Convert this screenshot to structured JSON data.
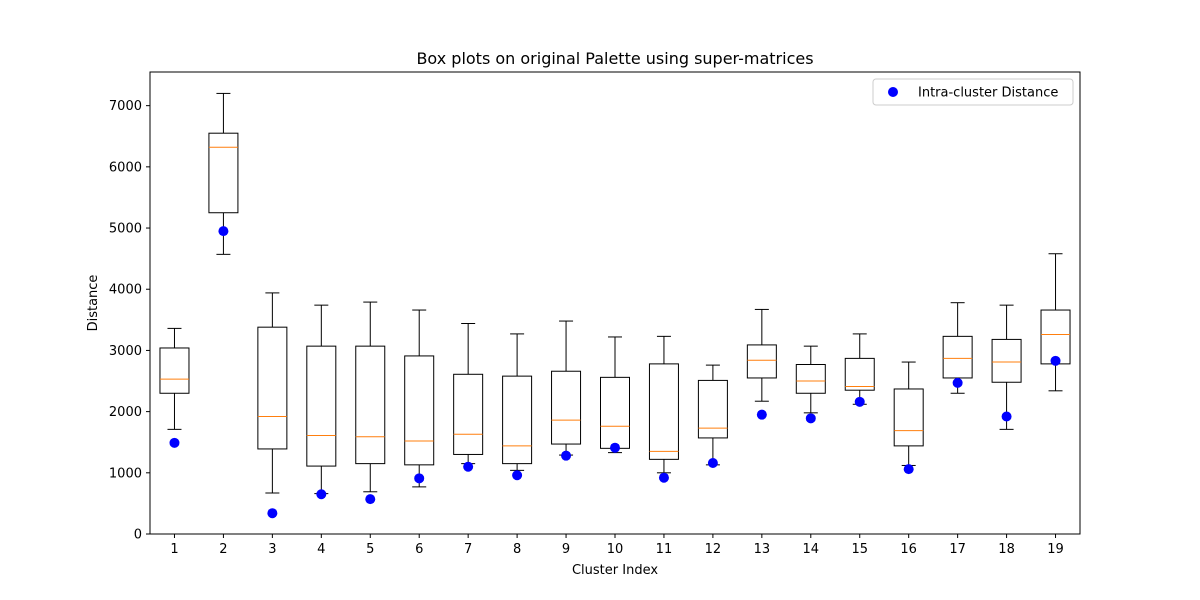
{
  "chart_data": {
    "type": "box",
    "title": "Box plots on original Palette using super-matrices",
    "xlabel": "Cluster Index",
    "ylabel": "Distance",
    "ylim": [
      0,
      7550
    ],
    "xlim": [
      0.5,
      19.5
    ],
    "yticks": [
      0,
      1000,
      2000,
      3000,
      4000,
      5000,
      6000,
      7000
    ],
    "categories": [
      "1",
      "2",
      "3",
      "4",
      "5",
      "6",
      "7",
      "8",
      "9",
      "10",
      "11",
      "12",
      "13",
      "14",
      "15",
      "16",
      "17",
      "18",
      "19"
    ],
    "boxes": [
      {
        "whisker_low": 1710,
        "q1": 2300,
        "median": 2530,
        "q3": 3040,
        "whisker_high": 3360
      },
      {
        "whisker_low": 4570,
        "q1": 5250,
        "median": 6320,
        "q3": 6550,
        "whisker_high": 7200
      },
      {
        "whisker_low": 670,
        "q1": 1390,
        "median": 1920,
        "q3": 3380,
        "whisker_high": 3940
      },
      {
        "whisker_low": 660,
        "q1": 1110,
        "median": 1610,
        "q3": 3070,
        "whisker_high": 3740
      },
      {
        "whisker_low": 690,
        "q1": 1150,
        "median": 1590,
        "q3": 3070,
        "whisker_high": 3790
      },
      {
        "whisker_low": 770,
        "q1": 1130,
        "median": 1520,
        "q3": 2910,
        "whisker_high": 3660
      },
      {
        "whisker_low": 1150,
        "q1": 1300,
        "median": 1630,
        "q3": 2610,
        "whisker_high": 3440
      },
      {
        "whisker_low": 1040,
        "q1": 1150,
        "median": 1440,
        "q3": 2580,
        "whisker_high": 3270
      },
      {
        "whisker_low": 1290,
        "q1": 1470,
        "median": 1860,
        "q3": 2660,
        "whisker_high": 3480
      },
      {
        "whisker_low": 1330,
        "q1": 1400,
        "median": 1760,
        "q3": 2560,
        "whisker_high": 3220
      },
      {
        "whisker_low": 1000,
        "q1": 1220,
        "median": 1350,
        "q3": 2780,
        "whisker_high": 3230
      },
      {
        "whisker_low": 1130,
        "q1": 1570,
        "median": 1730,
        "q3": 2510,
        "whisker_high": 2760
      },
      {
        "whisker_low": 2170,
        "q1": 2550,
        "median": 2840,
        "q3": 3090,
        "whisker_high": 3670
      },
      {
        "whisker_low": 1980,
        "q1": 2300,
        "median": 2500,
        "q3": 2770,
        "whisker_high": 3070
      },
      {
        "whisker_low": 2120,
        "q1": 2350,
        "median": 2410,
        "q3": 2870,
        "whisker_high": 3270
      },
      {
        "whisker_low": 1120,
        "q1": 1440,
        "median": 1690,
        "q3": 2370,
        "whisker_high": 2810
      },
      {
        "whisker_low": 2300,
        "q1": 2550,
        "median": 2870,
        "q3": 3230,
        "whisker_high": 3780
      },
      {
        "whisker_low": 1710,
        "q1": 2480,
        "median": 2810,
        "q3": 3180,
        "whisker_high": 3740
      },
      {
        "whisker_low": 2340,
        "q1": 2780,
        "median": 3260,
        "q3": 3660,
        "whisker_high": 4580
      }
    ],
    "series": [
      {
        "name": "Intra-cluster Distance",
        "type": "scatter",
        "color": "#0000ff",
        "values": [
          1490,
          4950,
          340,
          650,
          570,
          910,
          1100,
          960,
          1280,
          1410,
          920,
          1160,
          1950,
          1890,
          2160,
          1060,
          2470,
          1920,
          2830
        ]
      }
    ],
    "legend_position": "top-right",
    "grid": false,
    "colors": {
      "box": "#000000",
      "median": "#ff7f0e",
      "marker": "#0000ff"
    }
  }
}
